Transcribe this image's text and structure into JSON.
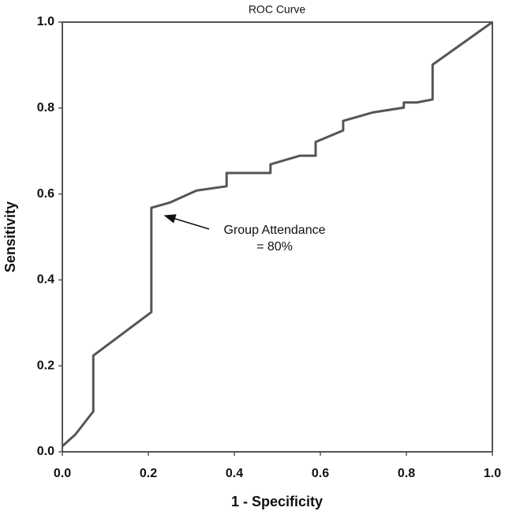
{
  "chart_data": {
    "type": "line",
    "title": "ROC Curve",
    "x_label": "1 - Specificity",
    "y_label": "Sensitivity",
    "annotation": [
      "Group Attendance",
      "= 80%"
    ],
    "x": [
      0,
      0.03,
      0.072,
      0.072,
      0.207,
      0.207,
      0.25,
      0.312,
      0.382,
      0.382,
      0.484,
      0.484,
      0.552,
      0.589,
      0.589,
      0.653,
      0.653,
      0.723,
      0.794,
      0.794,
      0.824,
      0.861,
      0.861,
      1
    ],
    "series": [
      {
        "name": "ROC",
        "color": "#555555",
        "values": [
          0.013,
          0.04,
          0.094,
          0.224,
          0.325,
          0.568,
          0.58,
          0.608,
          0.618,
          0.649,
          0.649,
          0.669,
          0.689,
          0.689,
          0.721,
          0.748,
          0.77,
          0.79,
          0.801,
          0.813,
          0.813,
          0.82,
          0.901,
          1
        ]
      }
    ],
    "xlim": [
      0,
      1
    ],
    "ylim": [
      0,
      1
    ],
    "xticks": [
      {
        "value": 0,
        "label": "0.0"
      },
      {
        "value": 0.2,
        "label": "0.2"
      },
      {
        "value": 0.4,
        "label": "0.4"
      },
      {
        "value": 0.6,
        "label": "0.6"
      },
      {
        "value": 0.8,
        "label": "0.8"
      },
      {
        "value": 1,
        "label": "1.0"
      }
    ],
    "yticks": [
      {
        "value": 0,
        "label": "0.0"
      },
      {
        "value": 0.2,
        "label": "0.2"
      },
      {
        "value": 0.4,
        "label": "0.4"
      },
      {
        "value": 0.6,
        "label": "0.6"
      },
      {
        "value": 0.8,
        "label": "0.8"
      },
      {
        "value": 1,
        "label": "1.0"
      }
    ],
    "grid": false
  }
}
